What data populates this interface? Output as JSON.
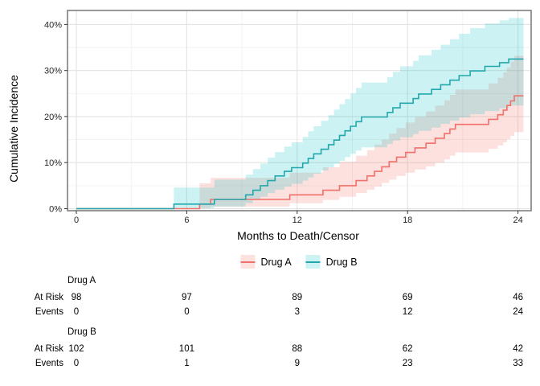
{
  "figure": {
    "x_axis": {
      "title": "Months to Death/Censor",
      "tick_labels": [
        "0",
        "6",
        "12",
        "18",
        "24"
      ],
      "tick_values": [
        0,
        6,
        12,
        18,
        24
      ],
      "minor_ticks": [
        3,
        9,
        15,
        21
      ],
      "range": [
        0,
        24.3
      ]
    },
    "y_axis": {
      "title": "Cumulative Incidence",
      "tick_labels": [
        "0%",
        "10%",
        "20%",
        "30%",
        "40%"
      ],
      "tick_values": [
        0,
        10,
        20,
        30,
        40
      ],
      "minor_ticks": [
        5,
        15,
        25,
        35
      ],
      "range": [
        0,
        43.5
      ]
    },
    "legend": {
      "items": [
        {
          "label": "Drug A",
          "series": "drug_a"
        },
        {
          "label": "Drug B",
          "series": "drug_b"
        }
      ]
    }
  },
  "chart_data": {
    "type": "line",
    "subtype": "cumulative-incidence-step-with-ci-bands",
    "x_unit": "months",
    "y_unit": "percent",
    "grid": "on",
    "legend_position": "bottom-center",
    "end_month": 24.3,
    "steps_format": [
      "month",
      "cumulative_incidence_pct",
      "ci_lower_pct",
      "ci_upper_pct"
    ],
    "series": [
      {
        "name": "Drug A",
        "id": "drug_a",
        "line_color": "#F1706A",
        "band_color": "rgba(248,118,109,0.22)",
        "steps": [
          [
            6.7,
            1.0,
            0.1,
            5.5
          ],
          [
            7.3,
            2.0,
            0.45,
            6.7
          ],
          [
            11.6,
            3.0,
            1.2,
            7.8
          ],
          [
            13.4,
            4.0,
            1.9,
            9.0
          ],
          [
            14.3,
            5.0,
            2.6,
            10.2
          ],
          [
            15.2,
            6.1,
            3.4,
            11.5
          ],
          [
            15.8,
            7.1,
            4.1,
            12.7
          ],
          [
            16.2,
            8.1,
            4.8,
            13.9
          ],
          [
            16.6,
            9.1,
            5.6,
            15.0
          ],
          [
            17.0,
            10.2,
            6.3,
            16.3
          ],
          [
            17.4,
            11.2,
            7.1,
            17.5
          ],
          [
            17.9,
            12.2,
            7.8,
            18.7
          ],
          [
            18.4,
            13.2,
            8.5,
            19.9
          ],
          [
            19.0,
            14.2,
            9.2,
            21.1
          ],
          [
            19.5,
            15.3,
            10.0,
            22.4
          ],
          [
            20.0,
            16.3,
            10.7,
            23.5
          ],
          [
            20.3,
            17.3,
            11.5,
            24.7
          ],
          [
            20.6,
            18.3,
            12.2,
            25.9
          ],
          [
            22.4,
            19.4,
            13.0,
            27.2
          ],
          [
            22.9,
            20.4,
            13.7,
            28.4
          ],
          [
            23.2,
            21.4,
            14.4,
            29.6
          ],
          [
            23.4,
            22.4,
            15.1,
            30.7
          ],
          [
            23.6,
            23.4,
            15.8,
            31.9
          ],
          [
            23.8,
            24.5,
            16.6,
            33.2
          ]
        ]
      },
      {
        "name": "Drug B",
        "id": "drug_b",
        "line_color": "#22A8AC",
        "band_color": "rgba(0,191,196,0.20)",
        "steps": [
          [
            5.3,
            1.0,
            0.1,
            4.6
          ],
          [
            7.5,
            2.0,
            0.45,
            6.3
          ],
          [
            9.2,
            3.0,
            1.2,
            7.4
          ],
          [
            9.6,
            4.0,
            1.9,
            8.6
          ],
          [
            10.0,
            5.0,
            2.6,
            9.8
          ],
          [
            10.4,
            6.1,
            3.4,
            11.1
          ],
          [
            10.8,
            7.1,
            4.1,
            12.3
          ],
          [
            11.3,
            8.1,
            4.8,
            13.5
          ],
          [
            11.7,
            8.9,
            5.4,
            14.4
          ],
          [
            12.3,
            9.9,
            6.1,
            15.6
          ],
          [
            12.6,
            10.9,
            6.8,
            16.8
          ],
          [
            12.9,
            11.9,
            7.6,
            17.9
          ],
          [
            13.3,
            12.9,
            8.3,
            19.1
          ],
          [
            13.7,
            13.9,
            9.0,
            20.3
          ],
          [
            14.0,
            14.9,
            9.7,
            21.5
          ],
          [
            14.3,
            15.9,
            10.4,
            22.7
          ],
          [
            14.6,
            16.9,
            11.2,
            23.8
          ],
          [
            14.9,
            17.9,
            11.9,
            25.0
          ],
          [
            15.2,
            18.9,
            12.6,
            26.2
          ],
          [
            15.5,
            19.9,
            13.3,
            27.4
          ],
          [
            16.9,
            20.9,
            14.0,
            28.6
          ],
          [
            17.2,
            21.9,
            14.8,
            29.7
          ],
          [
            17.6,
            22.9,
            15.5,
            30.9
          ],
          [
            18.3,
            23.9,
            16.2,
            32.1
          ],
          [
            18.6,
            24.9,
            16.9,
            33.3
          ],
          [
            19.3,
            25.9,
            17.6,
            34.5
          ],
          [
            19.8,
            26.9,
            18.4,
            35.6
          ],
          [
            20.3,
            27.9,
            19.1,
            36.8
          ],
          [
            20.8,
            28.9,
            19.8,
            38.0
          ],
          [
            21.4,
            29.9,
            20.5,
            39.2
          ],
          [
            22.2,
            30.9,
            21.2,
            40.2
          ],
          [
            23.0,
            31.7,
            21.8,
            40.9
          ],
          [
            23.5,
            32.5,
            22.4,
            41.4
          ]
        ]
      }
    ]
  },
  "risk_table": {
    "time_points": [
      0,
      6,
      12,
      18,
      24
    ],
    "groups": [
      {
        "name": "Drug A",
        "rows": [
          {
            "label": "At Risk",
            "values": [
              "98",
              "97",
              "89",
              "69",
              "46"
            ]
          },
          {
            "label": "Events",
            "values": [
              "0",
              "0",
              "3",
              "12",
              "24"
            ]
          }
        ]
      },
      {
        "name": "Drug B",
        "rows": [
          {
            "label": "At Risk",
            "values": [
              "102",
              "101",
              "88",
              "62",
              "42"
            ]
          },
          {
            "label": "Events",
            "values": [
              "0",
              "1",
              "9",
              "23",
              "33"
            ]
          }
        ]
      }
    ]
  },
  "colors": {
    "grid_major": "#E3E3E3",
    "grid_minor": "#F0F0F0",
    "panel_border": "#767676",
    "tick_mark": "#333333",
    "tick_text": "#262626"
  }
}
